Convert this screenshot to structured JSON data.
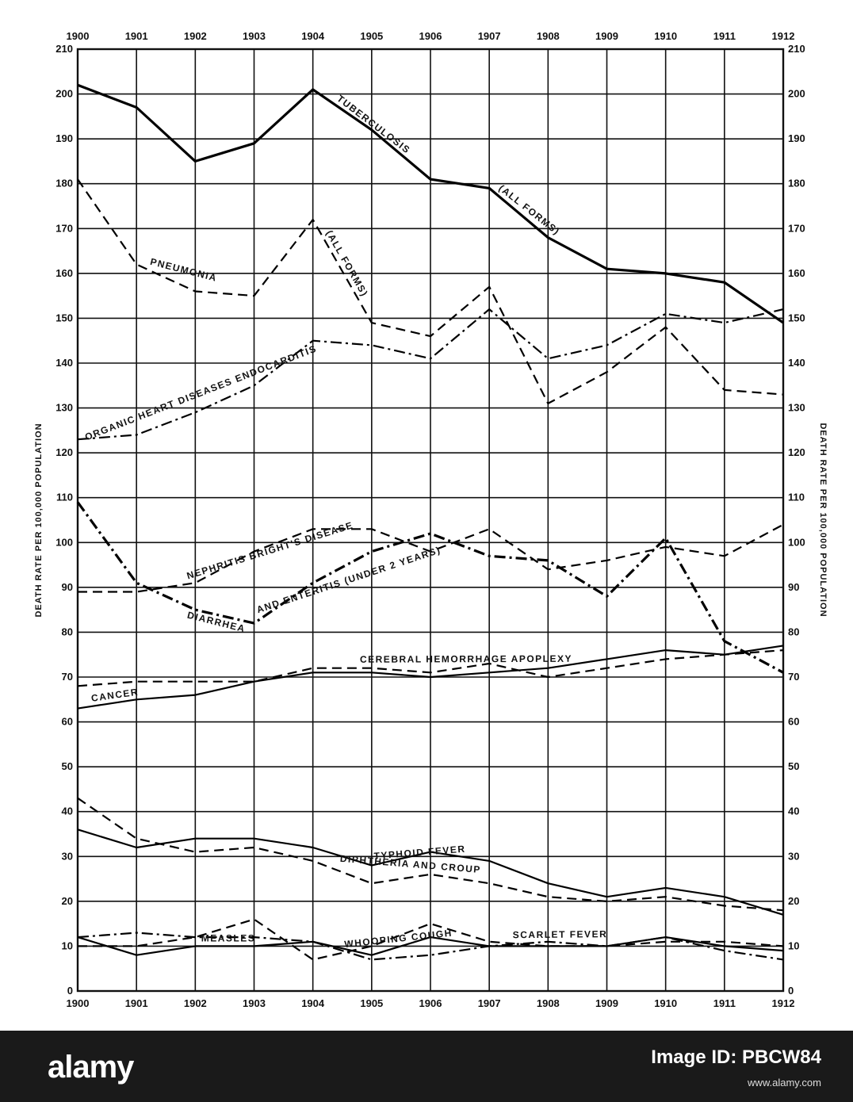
{
  "chart_data": {
    "type": "line",
    "x": [
      1900,
      1901,
      1902,
      1903,
      1904,
      1905,
      1906,
      1907,
      1908,
      1909,
      1910,
      1911,
      1912
    ],
    "x_tick_labels": [
      "1900",
      "1901",
      "1902",
      "1903",
      "1904",
      "1905",
      "1906",
      "1907",
      "1908",
      "1909",
      "1910",
      "1911",
      "1912"
    ],
    "ylim": [
      0,
      210
    ],
    "y_ticks": [
      0,
      10,
      20,
      30,
      40,
      50,
      60,
      70,
      80,
      90,
      100,
      110,
      120,
      130,
      140,
      150,
      160,
      170,
      180,
      190,
      200,
      210
    ],
    "y_tick_labels": [
      "0",
      "10",
      "20",
      "30",
      "40",
      "50",
      "60",
      "70",
      "80",
      "90",
      "100",
      "110",
      "120",
      "130",
      "140",
      "150",
      "160",
      "170",
      "180",
      "190",
      "200",
      "210"
    ],
    "ylabel_left": "DEATH RATE PER 100,000 POPULATION",
    "ylabel_right": "DEATH RATE PER 100,000 POPULATION",
    "grid": true,
    "series": [
      {
        "name": "TUBERCULOSIS (ALL FORMS)",
        "style": "solid",
        "weight": "heavy",
        "values": [
          202,
          197,
          185,
          189,
          201,
          192,
          181,
          179,
          168,
          161,
          160,
          158,
          149
        ]
      },
      {
        "name": "PNEUMONIA (ALL FORMS)",
        "style": "dashed",
        "weight": "normal",
        "values": [
          181,
          162,
          156,
          155,
          172,
          149,
          146,
          157,
          131,
          138,
          148,
          134,
          133
        ]
      },
      {
        "name": "ORGANIC HEART DISEASES ENDOCARDITIS",
        "style": "dashdot",
        "weight": "normal",
        "values": [
          123,
          124,
          129,
          135,
          145,
          144,
          141,
          152,
          141,
          144,
          151,
          149,
          152
        ]
      },
      {
        "name": "NEPHRITIS BRIGHT'S DISEASE",
        "style": "dashed",
        "weight": "normal",
        "values": [
          89,
          89,
          91,
          98,
          103,
          103,
          98,
          103,
          94,
          96,
          99,
          97,
          104
        ]
      },
      {
        "name": "DIARRHEA AND ENTERITIS (UNDER 2 YEARS)",
        "style": "dashdot",
        "weight": "heavy",
        "values": [
          109,
          91,
          85,
          82,
          91,
          98,
          102,
          97,
          96,
          88,
          101,
          78,
          71
        ]
      },
      {
        "name": "CEREBRAL HEMORRHAGE APOPLEXY",
        "style": "dashed",
        "weight": "normal",
        "values": [
          68,
          69,
          69,
          69,
          72,
          72,
          71,
          73,
          70,
          72,
          74,
          75,
          76
        ]
      },
      {
        "name": "CANCER",
        "style": "solid",
        "weight": "normal",
        "values": [
          63,
          65,
          66,
          69,
          71,
          71,
          70,
          71,
          72,
          74,
          76,
          75,
          77
        ]
      },
      {
        "name": "TYPHOID FEVER",
        "style": "solid",
        "weight": "normal",
        "values": [
          36,
          32,
          34,
          34,
          32,
          28,
          31,
          29,
          24,
          21,
          23,
          21,
          17
        ]
      },
      {
        "name": "DIPHTHERIA AND CROUP",
        "style": "dashed",
        "weight": "normal",
        "values": [
          43,
          34,
          31,
          32,
          29,
          24,
          26,
          24,
          21,
          20,
          21,
          19,
          18
        ]
      },
      {
        "name": "WHOOPING COUGH",
        "style": "dashed",
        "weight": "normal",
        "values": [
          10,
          10,
          12,
          16,
          7,
          10,
          15,
          11,
          10,
          10,
          11,
          11,
          10
        ]
      },
      {
        "name": "SCARLET FEVER",
        "style": "dashdot",
        "weight": "normal",
        "values": [
          12,
          13,
          12,
          12,
          11,
          7,
          8,
          10,
          11,
          10,
          12,
          9,
          7
        ]
      },
      {
        "name": "MEASLES",
        "style": "solid",
        "weight": "normal",
        "values": [
          12,
          8,
          10,
          10,
          11,
          8,
          12,
          10,
          10,
          10,
          12,
          10,
          9
        ]
      }
    ]
  },
  "watermark": {
    "logo": "alamy",
    "image_id_label": "Image ID: PBCW84",
    "url": "www.alamy.com"
  }
}
